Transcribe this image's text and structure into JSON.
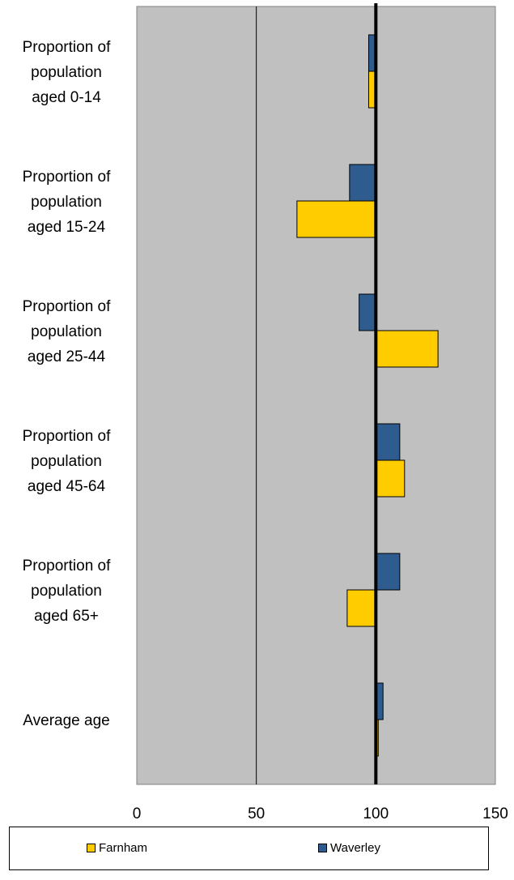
{
  "chart_data": {
    "type": "bar",
    "orientation": "horizontal",
    "categories": [
      [
        "Proportion of",
        "population",
        "aged 0-14"
      ],
      [
        "Proportion of",
        "population",
        "aged 15-24"
      ],
      [
        "Proportion of",
        "population",
        "aged 25-44"
      ],
      [
        "Proportion of",
        "population",
        "aged 45-64"
      ],
      [
        "Proportion of",
        "population",
        "aged 65+"
      ],
      [
        "Average age"
      ]
    ],
    "series": [
      {
        "name": "Waverley",
        "color": "#2E5C8E",
        "values": [
          97,
          89,
          93,
          110,
          110,
          103
        ]
      },
      {
        "name": "Farnham",
        "color": "#FFCC00",
        "values": [
          97,
          67,
          126,
          112,
          88,
          101
        ]
      }
    ],
    "baseline": 100,
    "xlim": [
      0,
      150
    ],
    "xticks": [
      "0",
      "50",
      "100",
      "150"
    ],
    "title": "",
    "xlabel": "",
    "ylabel": "",
    "grid": "vertical at 50",
    "background": "#C0C0C0",
    "legend_position": "bottom"
  },
  "legend": {
    "farnham_label": "Farnham",
    "waverley_label": "Waverley"
  }
}
